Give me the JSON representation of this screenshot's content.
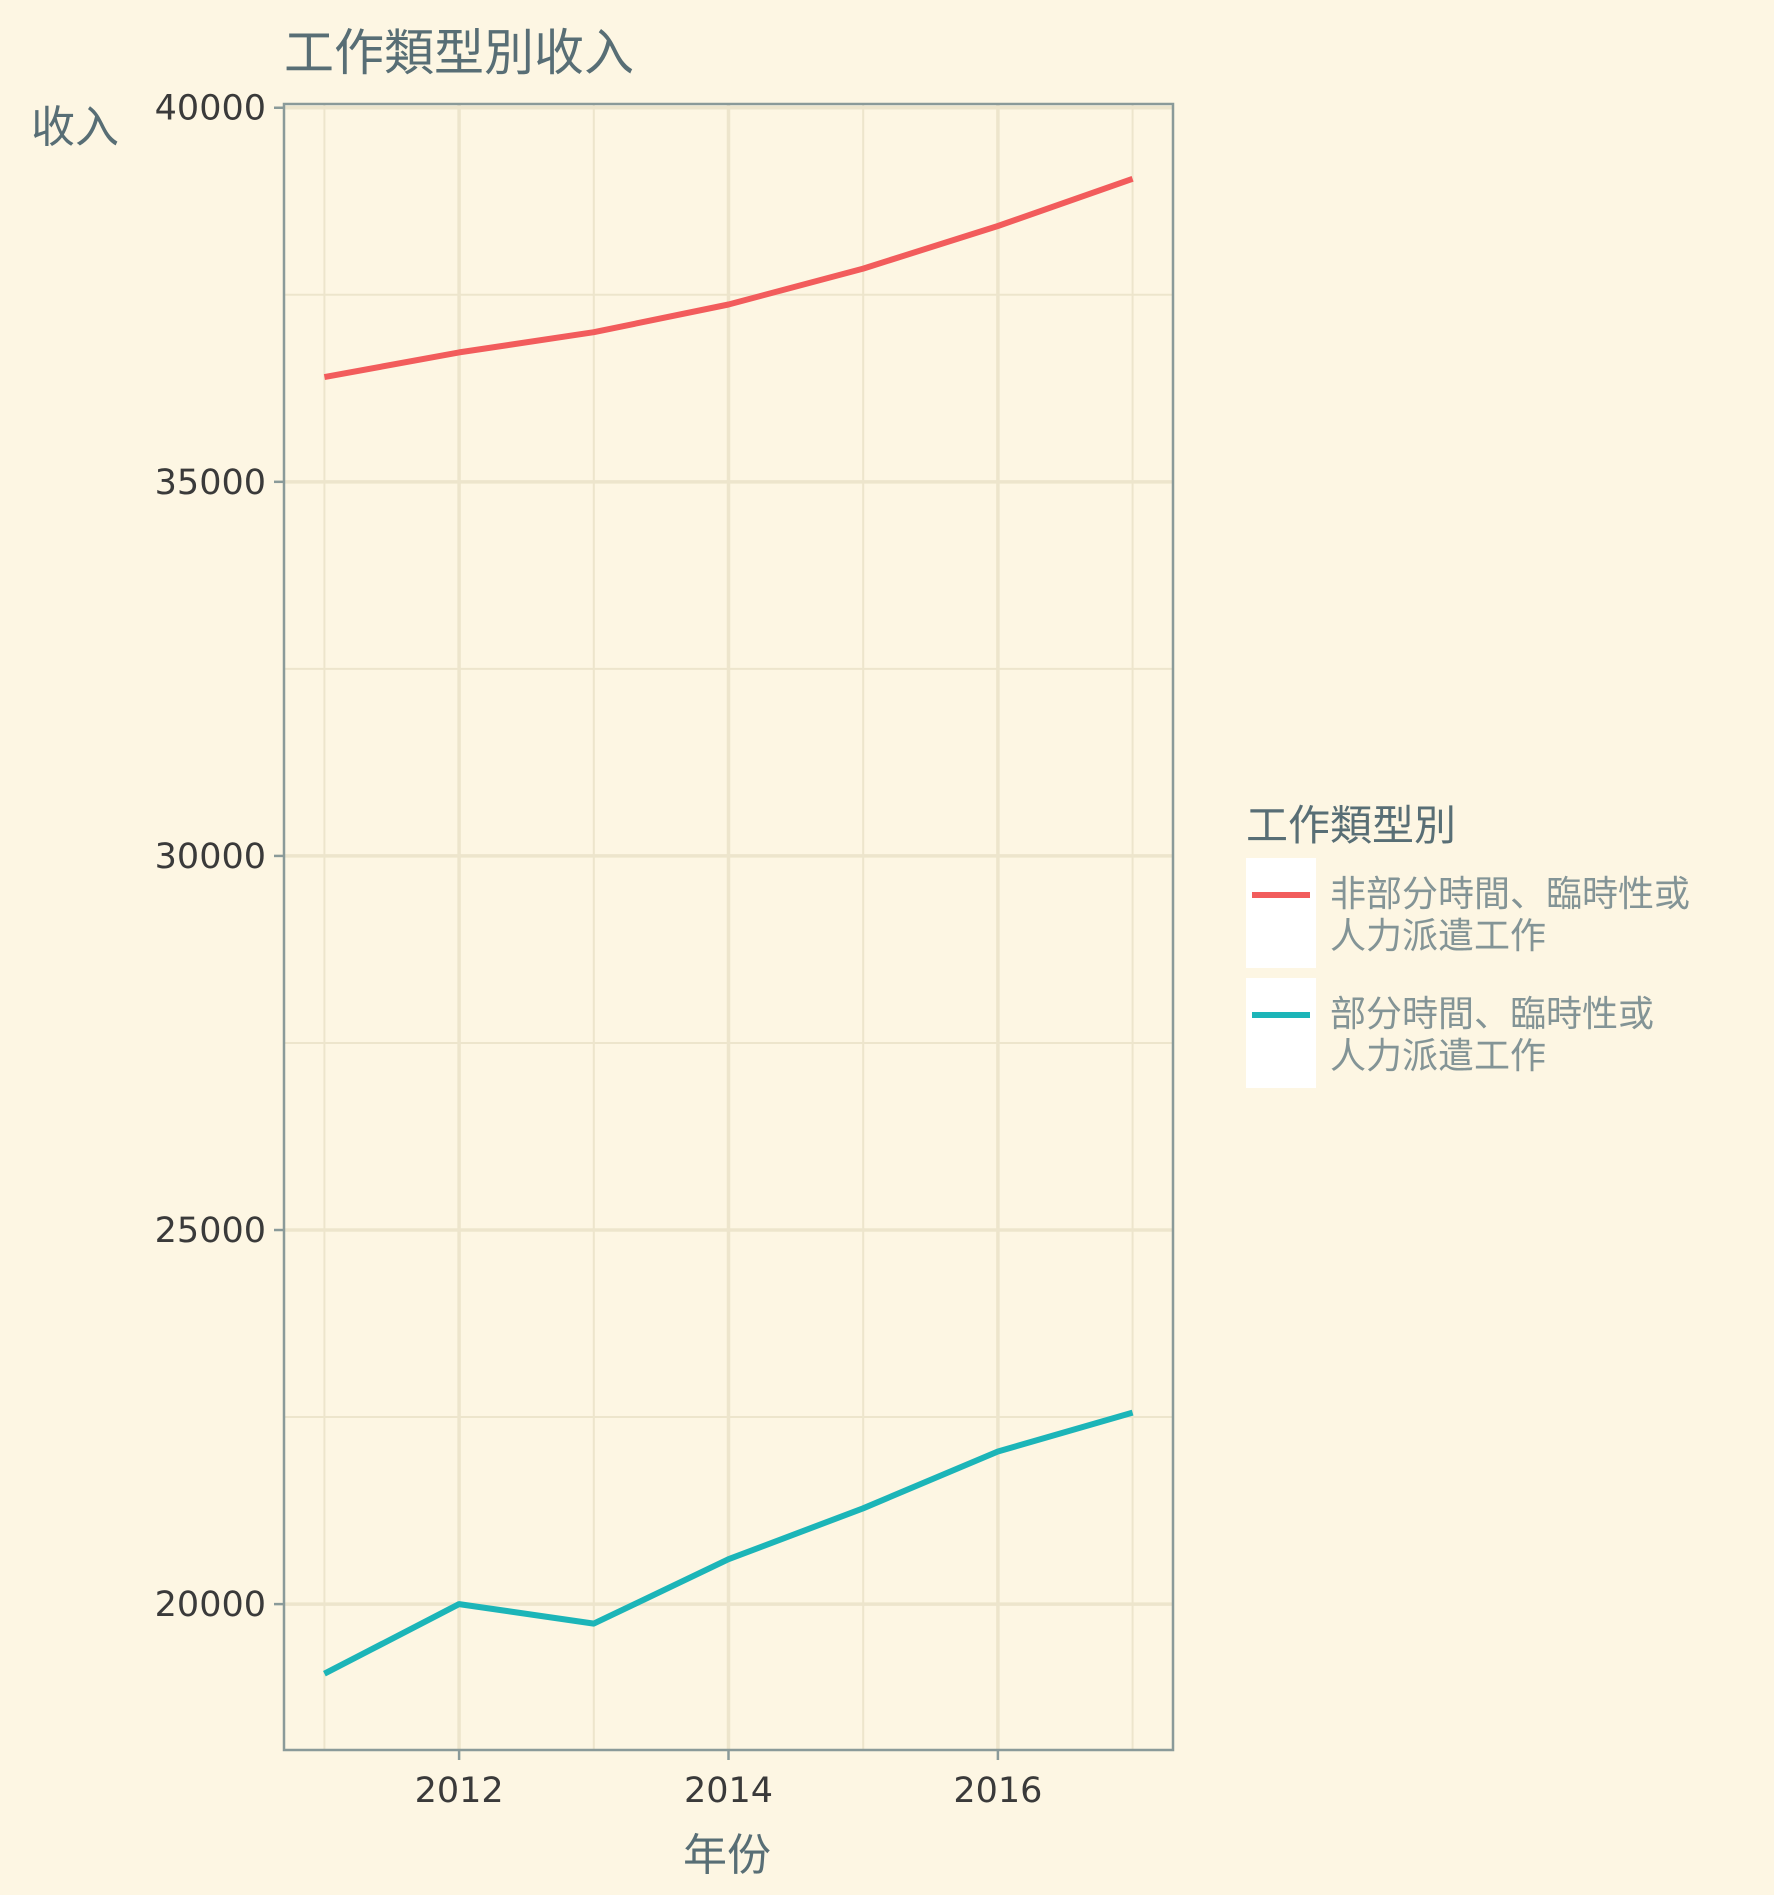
{
  "chart_data": {
    "type": "line",
    "title": "工作類型別收入",
    "xlabel": "年份",
    "ylabel": "收入",
    "x": [
      2011,
      2012,
      2013,
      2014,
      2015,
      2016,
      2017
    ],
    "xlim": [
      2010.7,
      2017.3
    ],
    "ylim": [
      18050,
      40050
    ],
    "x_ticks": [
      2012,
      2014,
      2016
    ],
    "y_ticks": [
      20000,
      25000,
      30000,
      35000,
      40000
    ],
    "grid": true,
    "legend": {
      "title": "工作類型別",
      "position": "right"
    },
    "series": [
      {
        "name": "非部分時間、臨時性或人力派遣工作",
        "label_lines": [
          "非部分時間、臨時性或",
          "人力派遣工作"
        ],
        "color": "#f25c5c",
        "values": [
          36400,
          36730,
          37000,
          37370,
          37850,
          38420,
          39050
        ]
      },
      {
        "name": "部分時間、臨時性或人力派遣工作",
        "label_lines": [
          "部分時間、臨時性或",
          "人力派遣工作"
        ],
        "color": "#1cb5b8",
        "values": [
          19070,
          20000,
          19740,
          20600,
          21280,
          22040,
          22560
        ]
      }
    ],
    "colors": {
      "background": "#fdf6e3",
      "grid": "#ede5cc",
      "axis": "#8a9a99"
    }
  }
}
